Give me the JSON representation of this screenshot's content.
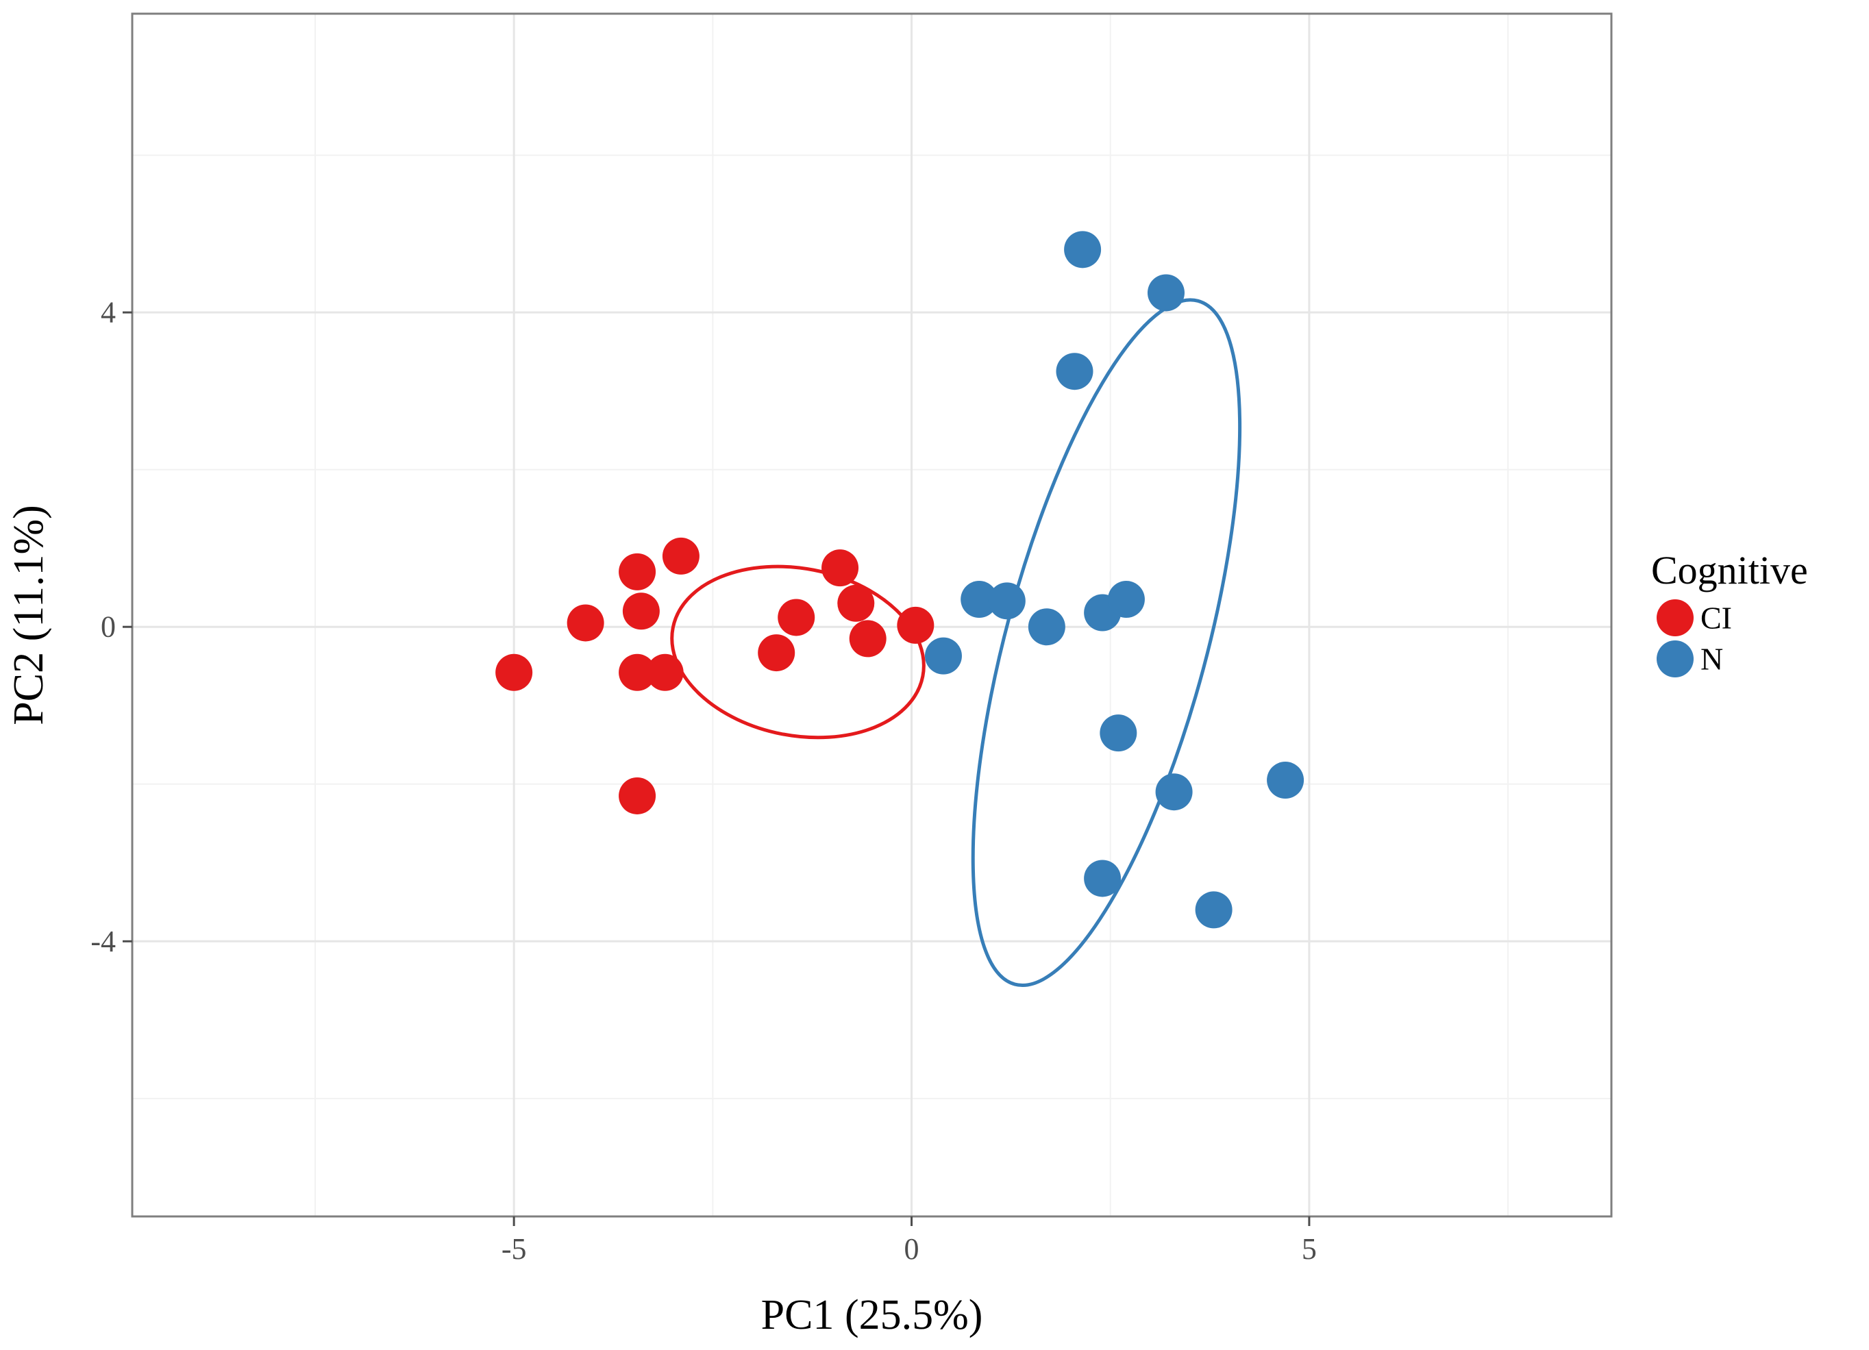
{
  "chart_data": {
    "type": "scatter",
    "title": "",
    "xlabel": "PC1 (25.5%)",
    "ylabel": "PC2 (11.1%)",
    "xlim": [
      -9.8,
      8.8
    ],
    "ylim": [
      -7.5,
      7.8
    ],
    "x_major_ticks": [
      -5,
      0,
      5
    ],
    "x_tick_labels": [
      "-5",
      "0",
      "5"
    ],
    "y_major_ticks": [
      -4,
      0,
      4
    ],
    "y_tick_labels": [
      "-4",
      "0",
      "4"
    ],
    "x_minor_grid": [
      -7.5,
      -2.5,
      2.5,
      7.5
    ],
    "y_minor_grid": [
      -6,
      -2,
      2,
      6
    ],
    "grid": true,
    "legend": {
      "title": "Cognitive",
      "position": "right",
      "entries": [
        {
          "label": "CI",
          "color": "#e41a1c"
        },
        {
          "label": "N",
          "color": "#377eb8"
        }
      ]
    },
    "series": [
      {
        "name": "CI",
        "color": "#e41a1c",
        "points": [
          [
            -5.0,
            -0.58
          ],
          [
            -4.1,
            0.05
          ],
          [
            -3.45,
            0.7
          ],
          [
            -3.4,
            0.2
          ],
          [
            -2.9,
            0.9
          ],
          [
            -3.45,
            -0.58
          ],
          [
            -3.1,
            -0.58
          ],
          [
            -3.45,
            -2.15
          ],
          [
            -1.45,
            0.12
          ],
          [
            -1.7,
            -0.33
          ],
          [
            -0.9,
            0.75
          ],
          [
            -0.7,
            0.3
          ],
          [
            -0.55,
            -0.15
          ],
          [
            0.05,
            0.02
          ]
        ],
        "ellipse": {
          "center": [
            -1.43,
            -0.32
          ],
          "semi_axes": [
            6.4,
            4.25
          ],
          "rotation_deg": 11
        }
      },
      {
        "name": "N",
        "color": "#377eb8",
        "points": [
          [
            2.15,
            4.8
          ],
          [
            3.2,
            4.25
          ],
          [
            2.05,
            3.25
          ],
          [
            0.4,
            -0.37
          ],
          [
            0.85,
            0.35
          ],
          [
            1.2,
            0.33
          ],
          [
            1.7,
            0.0
          ],
          [
            2.4,
            0.18
          ],
          [
            2.7,
            0.35
          ],
          [
            2.6,
            -1.35
          ],
          [
            3.3,
            -2.1
          ],
          [
            4.7,
            -1.95
          ],
          [
            2.4,
            -3.2
          ],
          [
            3.8,
            -3.6
          ]
        ],
        "ellipse": {
          "center": [
            2.45,
            -0.2
          ],
          "semi_axes": [
            5.05,
            18.0
          ],
          "rotation_deg": 15
        }
      }
    ]
  }
}
